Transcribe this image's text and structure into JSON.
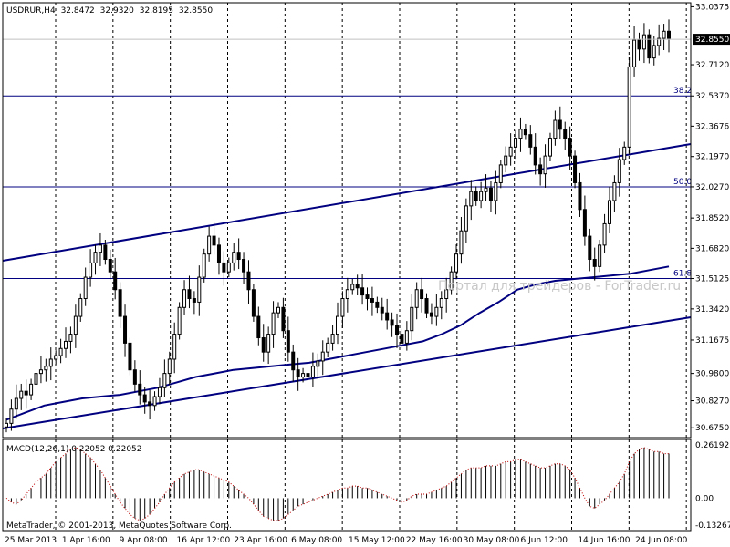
{
  "header": {
    "symbol": "USDRUR,H4",
    "open": "32.8472",
    "high": "32.9320",
    "low": "32.8195",
    "close": "32.8550"
  },
  "watermark": "Портал для трейдеров - ForTrader.ru",
  "footer": "MetaTrader, © 2001-2013, MetaQuotes Software Corp.",
  "colors": {
    "candles": "#000000",
    "trend": "#000080",
    "grid": "#000000",
    "current_price_bg": "#000000",
    "current_price_fg": "#ffffff"
  },
  "chart_data": [
    {
      "type": "candlestick",
      "timeframe": "H4",
      "ylim": [
        30.62,
        33.06
      ],
      "yticks": [
        30.675,
        30.827,
        30.98,
        31.1675,
        31.342,
        31.5125,
        31.682,
        31.852,
        32.027,
        32.197,
        32.3676,
        32.537,
        32.712,
        33.0375
      ],
      "ytick_labels": [
        "30.6750",
        "30.8270",
        "30.9800",
        "31.1675",
        "31.3420",
        "31.5125",
        "31.6820",
        "31.8520",
        "32.0270",
        "32.1970",
        "32.3676",
        "32.5370",
        "32.7120",
        "33.0375"
      ],
      "current_price": 32.855,
      "current_price_label": "32.8550",
      "x_labels": [
        "25 Mar 2013",
        "1 Apr 16:00",
        "9 Apr 08:00",
        "16 Apr 12:00",
        "23 Apr 16:00",
        "6 May 08:00",
        "15 May 12:00",
        "22 May 16:00",
        "30 May 08:00",
        "6 Jun 12:00",
        "14 Jun 16:00",
        "24 Jun 08:00"
      ],
      "close_series": [
        30.7,
        30.78,
        30.84,
        30.88,
        30.86,
        30.92,
        30.98,
        31.0,
        31.02,
        31.06,
        31.08,
        31.12,
        31.16,
        31.2,
        31.3,
        31.4,
        31.52,
        31.6,
        31.66,
        31.7,
        31.62,
        31.55,
        31.45,
        31.3,
        31.15,
        31.0,
        30.92,
        30.86,
        30.82,
        30.8,
        30.85,
        30.9,
        30.98,
        31.06,
        31.2,
        31.35,
        31.45,
        31.4,
        31.38,
        31.52,
        31.65,
        31.75,
        31.7,
        31.6,
        31.55,
        31.6,
        31.66,
        31.62,
        31.55,
        31.45,
        31.3,
        31.18,
        31.1,
        31.2,
        31.32,
        31.35,
        31.22,
        31.1,
        31.0,
        30.96,
        30.98,
        30.96,
        31.02,
        31.05,
        31.1,
        31.15,
        31.2,
        31.3,
        31.4,
        31.45,
        31.48,
        31.46,
        31.42,
        31.4,
        31.38,
        31.35,
        31.32,
        31.28,
        31.25,
        31.2,
        31.15,
        31.22,
        31.35,
        31.45,
        31.4,
        31.32,
        31.3,
        31.35,
        31.4,
        31.45,
        31.55,
        31.65,
        31.78,
        31.92,
        32.0,
        31.95,
        32.0,
        32.02,
        31.95,
        32.05,
        32.15,
        32.2,
        32.25,
        32.3,
        32.35,
        32.32,
        32.25,
        32.15,
        32.1,
        32.2,
        32.3,
        32.4,
        32.35,
        32.3,
        32.2,
        32.05,
        31.9,
        31.75,
        31.62,
        31.58,
        31.7,
        31.82,
        31.95,
        32.05,
        32.18,
        32.25,
        32.7,
        32.85,
        32.8,
        32.88,
        32.75,
        32.82,
        32.86,
        32.9,
        32.86
      ],
      "indicators": {
        "macd": {
          "label": "MACD(12,26,1) 0.22052 0.22052",
          "ylim": [
            -0.16,
            0.29
          ],
          "yticks": [
            0.26192,
            0.0,
            -0.13267
          ],
          "ytick_labels": [
            "0.26192",
            "0.00",
            "-0.13267"
          ],
          "values": [
            0.0,
            -0.02,
            -0.03,
            -0.01,
            0.02,
            0.05,
            0.08,
            0.1,
            0.12,
            0.15,
            0.18,
            0.2,
            0.22,
            0.24,
            0.25,
            0.24,
            0.22,
            0.2,
            0.17,
            0.14,
            0.1,
            0.06,
            0.02,
            -0.02,
            -0.05,
            -0.08,
            -0.1,
            -0.11,
            -0.1,
            -0.08,
            -0.05,
            -0.02,
            0.02,
            0.05,
            0.08,
            0.1,
            0.12,
            0.13,
            0.14,
            0.14,
            0.13,
            0.12,
            0.11,
            0.1,
            0.09,
            0.08,
            0.06,
            0.04,
            0.02,
            0.0,
            -0.03,
            -0.06,
            -0.09,
            -0.1,
            -0.11,
            -0.11,
            -0.1,
            -0.08,
            -0.06,
            -0.04,
            -0.03,
            -0.02,
            -0.01,
            0.0,
            0.01,
            0.02,
            0.03,
            0.04,
            0.05,
            0.05,
            0.06,
            0.06,
            0.05,
            0.05,
            0.04,
            0.03,
            0.02,
            0.01,
            0.0,
            -0.01,
            -0.02,
            -0.01,
            0.01,
            0.02,
            0.02,
            0.02,
            0.03,
            0.04,
            0.05,
            0.06,
            0.08,
            0.1,
            0.12,
            0.14,
            0.15,
            0.15,
            0.15,
            0.16,
            0.16,
            0.16,
            0.17,
            0.18,
            0.18,
            0.19,
            0.19,
            0.18,
            0.17,
            0.16,
            0.15,
            0.15,
            0.16,
            0.17,
            0.17,
            0.16,
            0.14,
            0.1,
            0.05,
            0.0,
            -0.04,
            -0.05,
            -0.03,
            -0.01,
            0.02,
            0.05,
            0.08,
            0.12,
            0.18,
            0.22,
            0.24,
            0.25,
            0.24,
            0.23,
            0.23,
            0.22,
            0.22
          ]
        },
        "ma_line": [
          30.72,
          30.76,
          30.8,
          30.82,
          30.84,
          30.85,
          30.86,
          30.88,
          30.9,
          30.93,
          30.96,
          30.98,
          31.0,
          31.01,
          31.02,
          31.03,
          31.04,
          31.06,
          31.08,
          31.1,
          31.12,
          31.14,
          31.16,
          31.2,
          31.25,
          31.32,
          31.38,
          31.45,
          31.48,
          31.5,
          31.51,
          31.52,
          31.53,
          31.54,
          31.56,
          31.58
        ],
        "fib_levels": [
          {
            "label": "38.2",
            "value": 32.537
          },
          {
            "label": "50.0",
            "value": 32.027
          },
          {
            "label": "61.8",
            "value": 31.5125
          }
        ]
      }
    }
  ]
}
